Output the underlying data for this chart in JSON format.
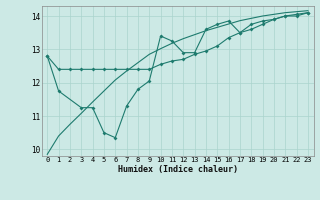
{
  "xlabel": "Humidex (Indice chaleur)",
  "bg_color": "#cce9e5",
  "grid_color": "#aad4ce",
  "line_color": "#1e7b6e",
  "xlim": [
    -0.5,
    23.5
  ],
  "ylim": [
    9.8,
    14.3
  ],
  "yticks": [
    10,
    11,
    12,
    13,
    14
  ],
  "xticks": [
    0,
    1,
    2,
    3,
    4,
    5,
    6,
    7,
    8,
    9,
    10,
    11,
    12,
    13,
    14,
    15,
    16,
    17,
    18,
    19,
    20,
    21,
    22,
    23
  ],
  "series1_x": [
    0,
    1,
    2,
    3,
    4,
    5,
    6,
    7,
    8,
    9,
    10,
    11,
    12,
    13,
    14,
    15,
    16,
    17,
    18,
    19,
    20,
    21,
    22,
    23
  ],
  "series1_y": [
    12.8,
    12.4,
    12.4,
    12.4,
    12.4,
    12.4,
    12.4,
    12.4,
    12.4,
    12.4,
    12.55,
    12.65,
    12.7,
    12.85,
    12.95,
    13.1,
    13.35,
    13.5,
    13.6,
    13.75,
    13.9,
    14.0,
    14.0,
    14.1
  ],
  "series2_x": [
    0,
    1,
    3,
    4,
    5,
    6,
    7,
    8,
    9,
    10,
    11,
    12,
    13,
    14,
    15,
    16,
    17,
    18,
    19,
    20,
    21,
    22,
    23
  ],
  "series2_y": [
    12.8,
    11.75,
    11.25,
    11.25,
    10.5,
    10.35,
    11.3,
    11.8,
    12.05,
    13.4,
    13.25,
    12.9,
    12.9,
    13.6,
    13.75,
    13.85,
    13.5,
    13.75,
    13.85,
    13.9,
    14.0,
    14.05,
    14.1
  ],
  "series3_x": [
    0,
    1,
    2,
    3,
    4,
    5,
    6,
    7,
    8,
    9,
    10,
    11,
    12,
    13,
    14,
    15,
    16,
    17,
    18,
    19,
    20,
    21,
    22,
    23
  ],
  "series3_y": [
    9.85,
    10.4,
    10.75,
    11.08,
    11.42,
    11.75,
    12.08,
    12.35,
    12.6,
    12.85,
    13.02,
    13.18,
    13.32,
    13.44,
    13.56,
    13.66,
    13.76,
    13.86,
    13.93,
    14.0,
    14.05,
    14.1,
    14.13,
    14.16
  ]
}
